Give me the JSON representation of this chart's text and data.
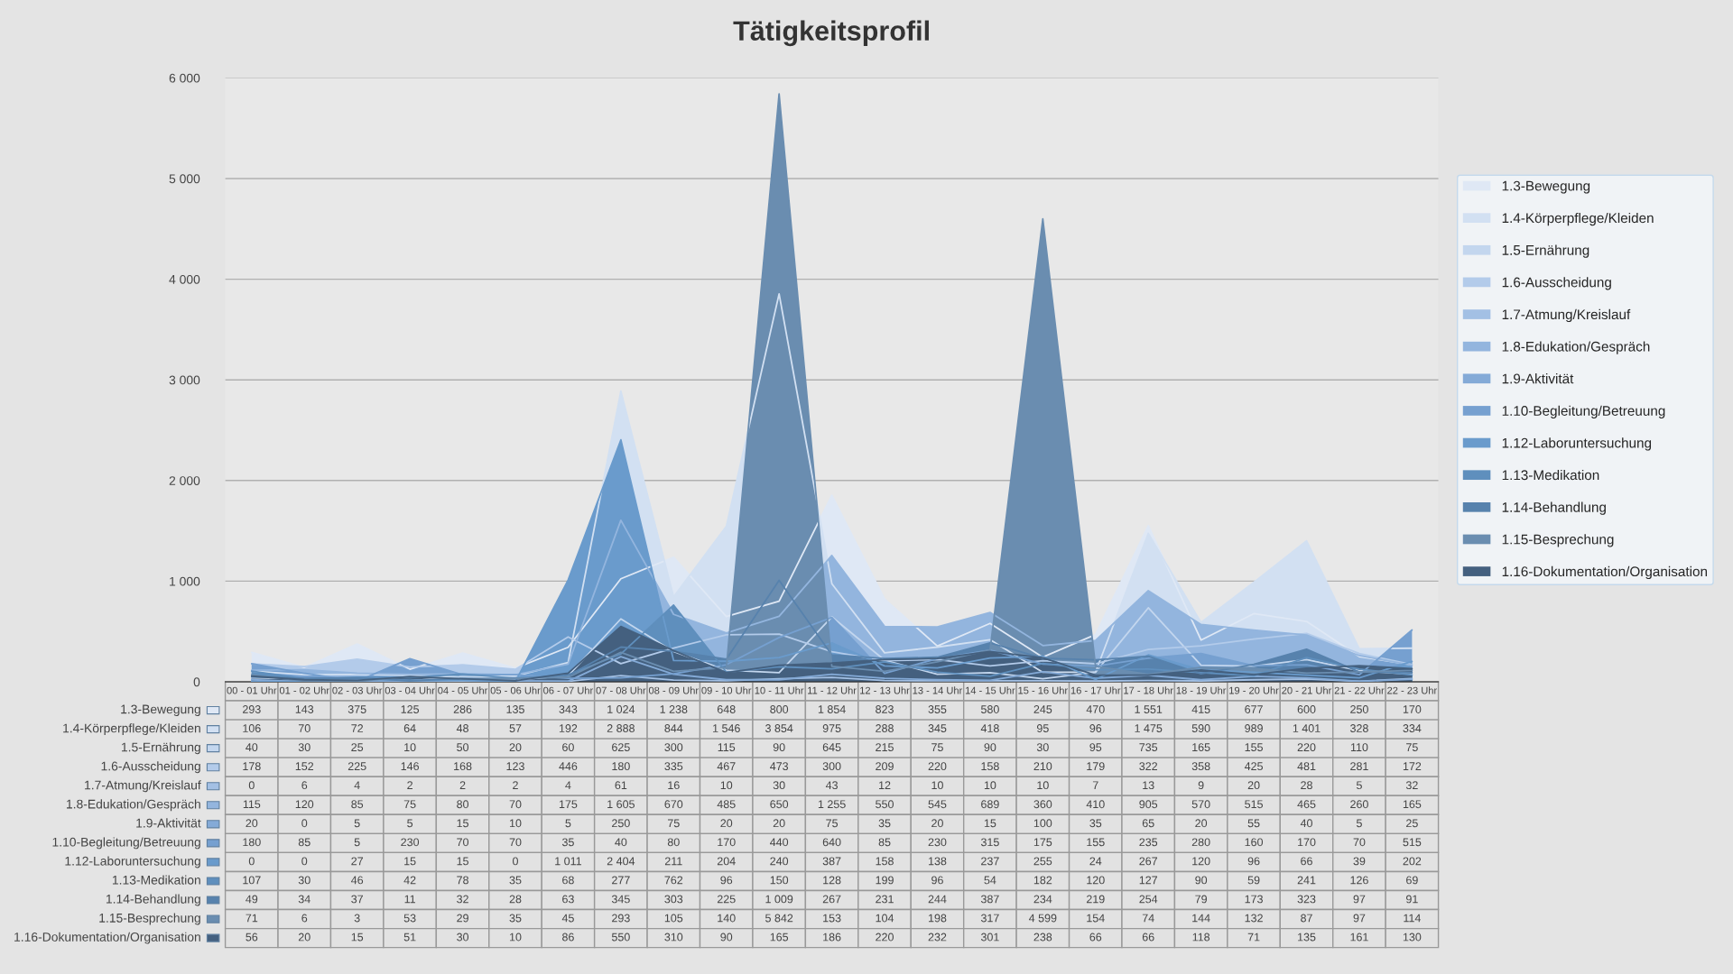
{
  "chart_data": {
    "type": "area",
    "title": "Tätigkeitsprofil",
    "categories": [
      "00 - 01 Uhr",
      "01 - 02 Uhr",
      "02 - 03 Uhr",
      "03 - 04 Uhr",
      "04 - 05 Uhr",
      "05 - 06 Uhr",
      "06 - 07 Uhr",
      "07 - 08 Uhr",
      "08 - 09 Uhr",
      "09 - 10 Uhr",
      "10 - 11 Uhr",
      "11 - 12 Uhr",
      "12 - 13 Uhr",
      "13 - 14 Uhr",
      "14 - 15 Uhr",
      "15 - 16 Uhr",
      "16 - 17 Uhr",
      "17 - 18 Uhr",
      "18 - 19 Uhr",
      "19 - 20 Uhr",
      "20 - 21 Uhr",
      "21 - 22 Uhr",
      "22 - 23 Uhr"
    ],
    "series": [
      {
        "name": "1.3-Bewegung",
        "color": "#dfe8f5",
        "values": [
          293,
          143,
          375,
          125,
          286,
          135,
          343,
          1024,
          1238,
          648,
          800,
          1854,
          823,
          355,
          580,
          245,
          470,
          1551,
          415,
          677,
          600,
          250,
          170
        ]
      },
      {
        "name": "1.4-Körperpflege/Kleiden",
        "color": "#d2e0f2",
        "values": [
          106,
          70,
          72,
          64,
          48,
          57,
          192,
          2888,
          844,
          1546,
          3854,
          975,
          288,
          345,
          418,
          95,
          96,
          1475,
          590,
          989,
          1401,
          328,
          334
        ]
      },
      {
        "name": "1.5-Ernährung",
        "color": "#c3d6ee",
        "values": [
          40,
          30,
          25,
          10,
          50,
          20,
          60,
          625,
          300,
          115,
          90,
          645,
          215,
          75,
          90,
          30,
          95,
          735,
          165,
          155,
          220,
          110,
          75
        ]
      },
      {
        "name": "1.6-Ausscheidung",
        "color": "#b3cbea",
        "values": [
          178,
          152,
          225,
          146,
          168,
          123,
          446,
          180,
          335,
          467,
          473,
          300,
          209,
          220,
          158,
          210,
          179,
          322,
          358,
          425,
          481,
          281,
          172
        ]
      },
      {
        "name": "1.7-Atmung/Kreislauf",
        "color": "#a3c0e4",
        "values": [
          0,
          6,
          4,
          2,
          2,
          2,
          4,
          61,
          16,
          10,
          30,
          43,
          12,
          10,
          10,
          10,
          7,
          13,
          9,
          20,
          28,
          5,
          32
        ]
      },
      {
        "name": "1.8-Edukation/Gespräch",
        "color": "#93b5de",
        "values": [
          115,
          120,
          85,
          75,
          80,
          70,
          175,
          1605,
          670,
          485,
          650,
          1255,
          550,
          545,
          689,
          360,
          410,
          905,
          570,
          515,
          465,
          260,
          165
        ]
      },
      {
        "name": "1.9-Aktivität",
        "color": "#84aad7",
        "values": [
          20,
          0,
          5,
          5,
          15,
          10,
          5,
          250,
          75,
          20,
          20,
          75,
          35,
          20,
          15,
          100,
          35,
          65,
          20,
          55,
          40,
          5,
          25
        ]
      },
      {
        "name": "1.10-Begleitung/Betreuung",
        "color": "#76a0d0",
        "values": [
          180,
          85,
          5,
          230,
          70,
          70,
          35,
          40,
          80,
          170,
          440,
          640,
          85,
          230,
          315,
          175,
          155,
          235,
          280,
          160,
          170,
          70,
          515
        ]
      },
      {
        "name": "1.12-Laboruntersuchung",
        "color": "#6a9bcc",
        "values": [
          0,
          0,
          27,
          15,
          15,
          0,
          1011,
          2404,
          211,
          204,
          240,
          387,
          158,
          138,
          237,
          255,
          24,
          267,
          120,
          96,
          66,
          39,
          202
        ]
      },
      {
        "name": "1.13-Medikation",
        "color": "#5f8fbd",
        "values": [
          107,
          30,
          46,
          42,
          78,
          35,
          68,
          277,
          762,
          96,
          150,
          128,
          199,
          96,
          54,
          182,
          120,
          127,
          90,
          59,
          241,
          126,
          69
        ]
      },
      {
        "name": "1.14-Behandlung",
        "color": "#5782ad",
        "values": [
          49,
          34,
          37,
          11,
          32,
          28,
          63,
          345,
          303,
          225,
          1009,
          267,
          231,
          244,
          387,
          234,
          219,
          254,
          79,
          173,
          323,
          97,
          91
        ]
      },
      {
        "name": "1.15-Besprechung",
        "color": "#6a8db0",
        "values": [
          71,
          6,
          3,
          53,
          29,
          35,
          45,
          293,
          105,
          140,
          5842,
          153,
          104,
          198,
          317,
          4599,
          154,
          74,
          144,
          132,
          87,
          97,
          114
        ]
      },
      {
        "name": "1.16-Dokumentation/Organisation",
        "color": "#44607f",
        "values": [
          56,
          20,
          15,
          51,
          30,
          10,
          86,
          550,
          310,
          90,
          165,
          186,
          220,
          232,
          301,
          238,
          66,
          66,
          118,
          71,
          135,
          161,
          130
        ]
      }
    ],
    "ylim": [
      0,
      6000
    ],
    "yticks": [
      {
        "value": 0,
        "label": "0"
      },
      {
        "value": 1000,
        "label": "1 000"
      },
      {
        "value": 2000,
        "label": "2 000"
      },
      {
        "value": 3000,
        "label": "3 000"
      },
      {
        "value": 4000,
        "label": "4 000"
      },
      {
        "value": 5000,
        "label": "5 000"
      },
      {
        "value": 6000,
        "label": "6 000"
      }
    ],
    "grid": "y",
    "legend": "right",
    "data_labels": true
  }
}
